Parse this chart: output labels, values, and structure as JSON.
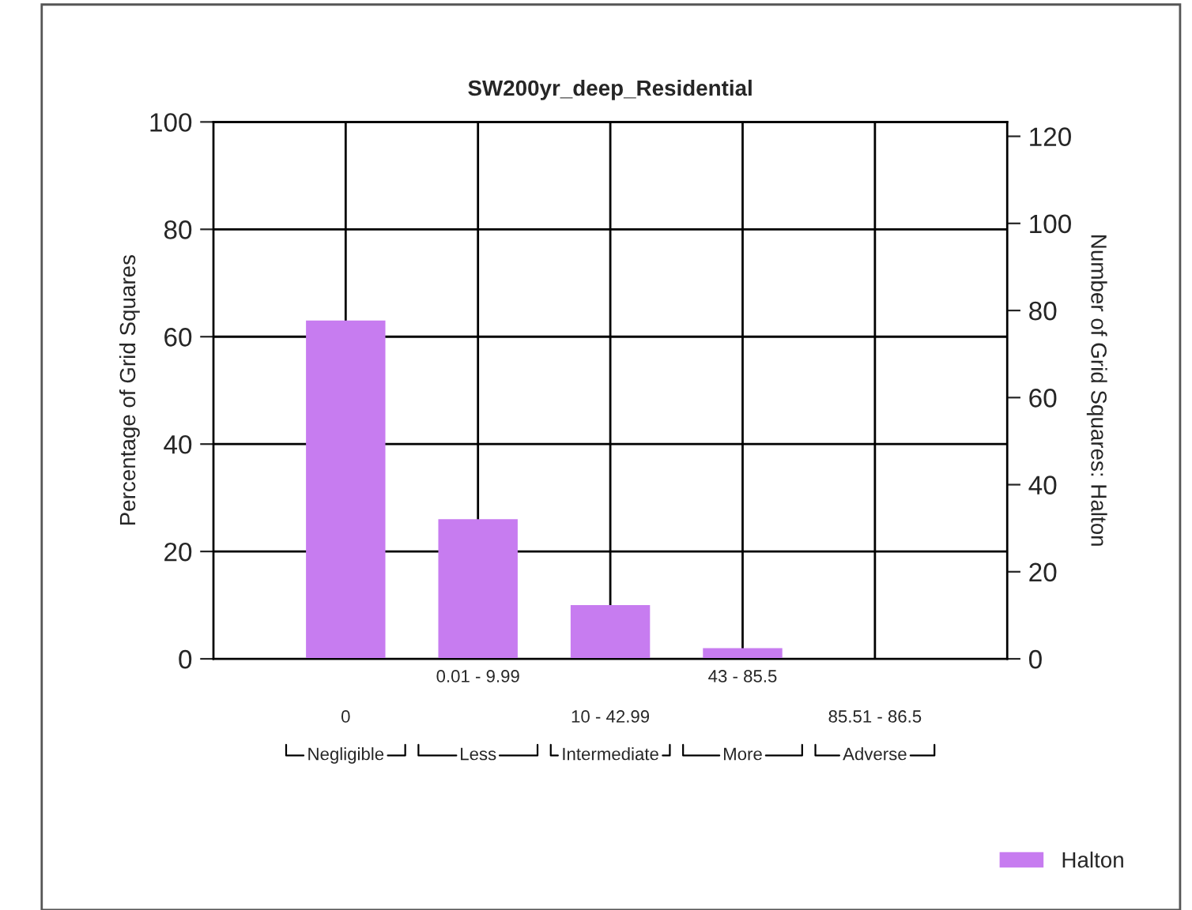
{
  "chart_data": {
    "type": "bar",
    "title": "SW200yr_deep_Residential",
    "categories": [
      "0",
      "0.01 - 9.99",
      "10 - 42.99",
      "43 - 85.5",
      "85.51 - 86.5"
    ],
    "series": [
      {
        "name": "Halton",
        "color": "#c77cf0",
        "values": [
          63,
          26,
          10,
          2,
          0
        ]
      }
    ],
    "ylabel": "Percentage of Grid Squares",
    "y2label": "Number of Grid Squares: Halton",
    "ylim": [
      0,
      100
    ],
    "yticks": [
      0,
      20,
      40,
      60,
      80,
      100
    ],
    "y2lim": [
      0,
      123.3
    ],
    "y2ticks": [
      0,
      20,
      40,
      60,
      80,
      100,
      120
    ],
    "annotations": [
      "Negligible",
      "Less",
      "Intermediate",
      "More",
      "Adverse"
    ],
    "grid": true,
    "legend": "bottom right"
  }
}
